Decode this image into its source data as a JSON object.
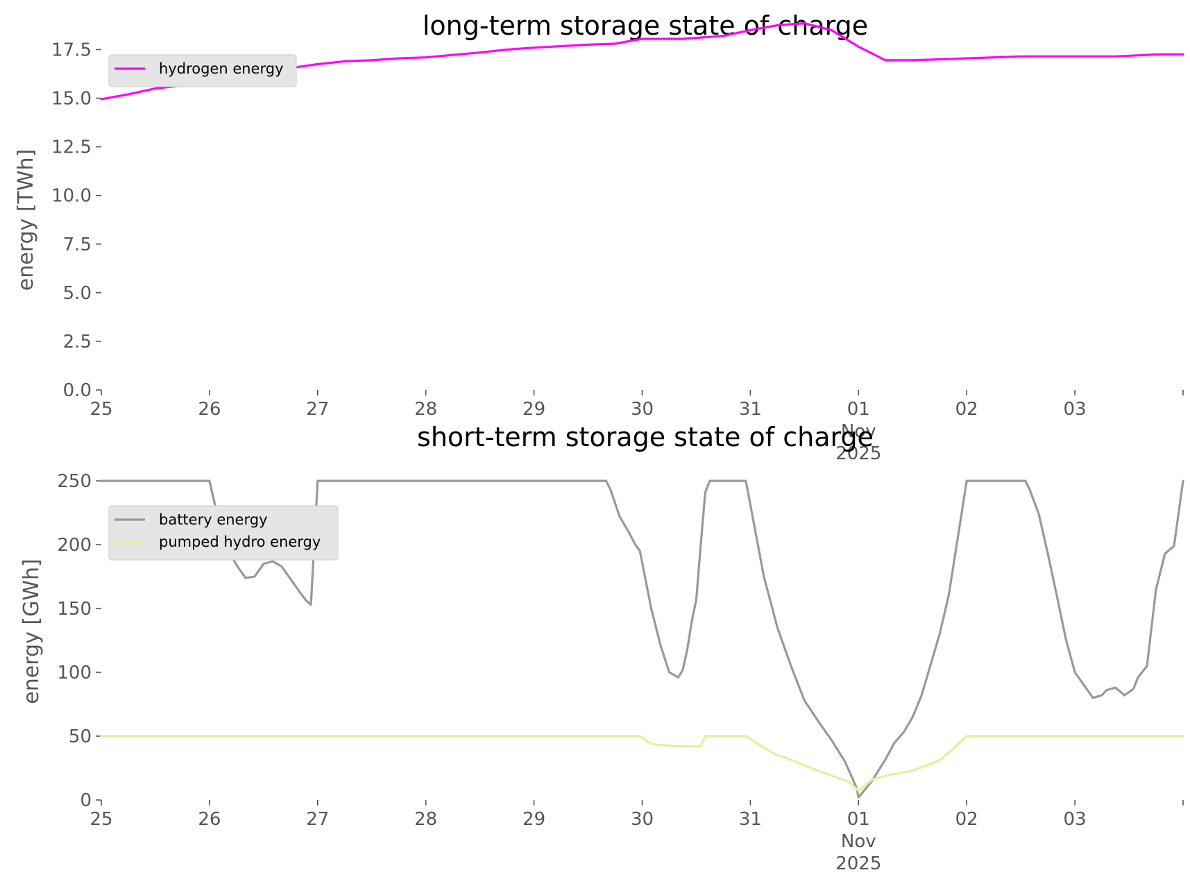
{
  "chart_data": [
    {
      "type": "line",
      "title": "long-term storage state of charge",
      "ylabel": "energy [TWh]",
      "ylim": [
        0,
        19.3
      ],
      "xlim": [
        "2025-10-25",
        "2025-11-04"
      ],
      "yticks": [
        "0.0",
        "2.5",
        "5.0",
        "7.5",
        "10.0",
        "12.5",
        "15.0",
        "17.5"
      ],
      "xticks": [
        {
          "date": "2025-10-25",
          "label": [
            "25"
          ]
        },
        {
          "date": "2025-10-26",
          "label": [
            "26"
          ]
        },
        {
          "date": "2025-10-27",
          "label": [
            "27"
          ]
        },
        {
          "date": "2025-10-28",
          "label": [
            "28"
          ]
        },
        {
          "date": "2025-10-29",
          "label": [
            "29"
          ]
        },
        {
          "date": "2025-10-30",
          "label": [
            "30"
          ]
        },
        {
          "date": "2025-10-31",
          "label": [
            "31"
          ]
        },
        {
          "date": "2025-11-01",
          "label": [
            "01",
            "Nov",
            "2025"
          ]
        },
        {
          "date": "2025-11-02",
          "label": [
            "02"
          ]
        },
        {
          "date": "2025-11-03",
          "label": [
            "03"
          ]
        },
        {
          "date": "2025-11-04",
          "label": [
            ""
          ]
        }
      ],
      "grid": false,
      "legend_position": "top-left",
      "series": [
        {
          "name": "hydrogen energy",
          "color": "#ff00ff",
          "x": [
            "2025-10-25T00:00",
            "2025-10-25T06:00",
            "2025-10-25T12:00",
            "2025-10-25T18:00",
            "2025-10-26T00:00",
            "2025-10-26T03:00",
            "2025-10-26T12:00",
            "2025-10-26T18:00",
            "2025-10-27T00:00",
            "2025-10-27T06:00",
            "2025-10-27T12:00",
            "2025-10-27T18:00",
            "2025-10-28T00:00",
            "2025-10-28T12:00",
            "2025-10-28T18:00",
            "2025-10-29T00:00",
            "2025-10-29T12:00",
            "2025-10-29T18:00",
            "2025-10-30T00:00",
            "2025-10-30T09:00",
            "2025-10-30T18:00",
            "2025-10-31T00:00",
            "2025-10-31T06:00",
            "2025-10-31T12:00",
            "2025-10-31T18:00",
            "2025-11-01T00:00",
            "2025-11-01T06:00",
            "2025-11-01T12:00",
            "2025-11-02T00:00",
            "2025-11-02T12:00",
            "2025-11-03T00:00",
            "2025-11-03T09:00",
            "2025-11-03T18:00",
            "2025-11-04T00:00"
          ],
          "values": [
            14.95,
            15.2,
            15.5,
            15.65,
            15.85,
            15.95,
            16.35,
            16.55,
            16.75,
            16.9,
            16.95,
            17.05,
            17.1,
            17.35,
            17.5,
            17.6,
            17.75,
            17.8,
            18.05,
            18.05,
            18.2,
            18.5,
            18.75,
            18.85,
            18.5,
            17.65,
            16.95,
            16.95,
            17.05,
            17.15,
            17.15,
            17.15,
            17.25,
            17.25
          ]
        }
      ]
    },
    {
      "type": "line",
      "title": "short-term storage state of charge",
      "ylabel": "energy [GWh]",
      "ylim": [
        0,
        262
      ],
      "xlim": [
        "2025-10-25",
        "2025-11-04"
      ],
      "yticks": [
        "0",
        "50",
        "100",
        "150",
        "200",
        "250"
      ],
      "xticks": [
        {
          "date": "2025-10-25",
          "label": [
            "25"
          ]
        },
        {
          "date": "2025-10-26",
          "label": [
            "26"
          ]
        },
        {
          "date": "2025-10-27",
          "label": [
            "27"
          ]
        },
        {
          "date": "2025-10-28",
          "label": [
            "28"
          ]
        },
        {
          "date": "2025-10-29",
          "label": [
            "29"
          ]
        },
        {
          "date": "2025-10-30",
          "label": [
            "30"
          ]
        },
        {
          "date": "2025-10-31",
          "label": [
            "31"
          ]
        },
        {
          "date": "2025-11-01",
          "label": [
            "01",
            "Nov",
            "2025"
          ]
        },
        {
          "date": "2025-11-02",
          "label": [
            "02"
          ]
        },
        {
          "date": "2025-11-03",
          "label": [
            "03"
          ]
        },
        {
          "date": "2025-11-04",
          "label": [
            ""
          ]
        }
      ],
      "grid": false,
      "legend_position": "top-left",
      "series": [
        {
          "name": "battery energy",
          "color": "#999999",
          "x": [
            "2025-10-25T00:00",
            "2025-10-26T00:00",
            "2025-10-26T03:00",
            "2025-10-26T06:00",
            "2025-10-26T08:00",
            "2025-10-26T10:00",
            "2025-10-26T12:00",
            "2025-10-26T14:00",
            "2025-10-26T16:00",
            "2025-10-26T18:00",
            "2025-10-26T20:00",
            "2025-10-26T21:30",
            "2025-10-26T22:30",
            "2025-10-27T00:00",
            "2025-10-29T16:00",
            "2025-10-29T17:00",
            "2025-10-29T19:00",
            "2025-10-29T21:00",
            "2025-10-29T22:30",
            "2025-10-29T23:30",
            "2025-10-30T02:00",
            "2025-10-30T04:00",
            "2025-10-30T06:00",
            "2025-10-30T08:00",
            "2025-10-30T09:00",
            "2025-10-30T10:00",
            "2025-10-30T11:00",
            "2025-10-30T12:00",
            "2025-10-30T13:00",
            "2025-10-30T14:00",
            "2025-10-30T15:00",
            "2025-10-30T16:00",
            "2025-10-30T23:00",
            "2025-10-31T03:00",
            "2025-10-31T06:00",
            "2025-10-31T09:00",
            "2025-10-31T12:00",
            "2025-10-31T15:00",
            "2025-10-31T18:00",
            "2025-10-31T21:00",
            "2025-10-31T23:30",
            "2025-11-01T00:00",
            "2025-11-01T03:00",
            "2025-11-01T06:00",
            "2025-11-01T08:00",
            "2025-11-01T10:00",
            "2025-11-01T12:00",
            "2025-11-01T14:00",
            "2025-11-01T18:00",
            "2025-11-01T20:00",
            "2025-11-02T00:00",
            "2025-11-02T13:00",
            "2025-11-02T14:00",
            "2025-11-02T16:00",
            "2025-11-02T18:00",
            "2025-11-02T20:00",
            "2025-11-02T22:00",
            "2025-11-03T00:00",
            "2025-11-03T04:00",
            "2025-11-03T06:00",
            "2025-11-03T07:00",
            "2025-11-03T09:00",
            "2025-11-03T11:00",
            "2025-11-03T13:00",
            "2025-11-03T14:00",
            "2025-11-03T16:00",
            "2025-11-03T18:00",
            "2025-11-03T20:00",
            "2025-11-03T22:00",
            "2025-11-04T00:00"
          ],
          "values": [
            250,
            250,
            204,
            184,
            174,
            175,
            185,
            187,
            183,
            173,
            163,
            156,
            153,
            250,
            250,
            243,
            222,
            210,
            200,
            195,
            150,
            122,
            100,
            96,
            102,
            118,
            140,
            157,
            200,
            241,
            250,
            250,
            250,
            175,
            135,
            105,
            78,
            62,
            47,
            30,
            10,
            2,
            15,
            32,
            45,
            53,
            65,
            82,
            130,
            160,
            250,
            250,
            243,
            224,
            193,
            160,
            126,
            100,
            80,
            82,
            86,
            88,
            82,
            87,
            96,
            105,
            165,
            193,
            199,
            250
          ],
          "value_note": ""
        },
        {
          "name": "pumped hydro energy",
          "color": "#d9f59c",
          "x": [
            "2025-10-25T00:00",
            "2025-10-29T23:30",
            "2025-10-30T02:00",
            "2025-10-30T04:00",
            "2025-10-30T08:00",
            "2025-10-30T12:00",
            "2025-10-30T13:00",
            "2025-10-30T14:00",
            "2025-10-30T23:00",
            "2025-10-31T03:00",
            "2025-10-31T06:00",
            "2025-10-31T08:00",
            "2025-10-31T12:00",
            "2025-10-31T18:00",
            "2025-10-31T22:00",
            "2025-11-01T00:00",
            "2025-11-01T03:00",
            "2025-11-01T06:00",
            "2025-11-01T12:00",
            "2025-11-01T18:00",
            "2025-11-01T20:00",
            "2025-11-02T00:00",
            "2025-11-04T00:00"
          ],
          "values": [
            50,
            50,
            44,
            43,
            42,
            42,
            42,
            50,
            50,
            41,
            35,
            33,
            27,
            19,
            14,
            7,
            16,
            19,
            23,
            31,
            37,
            50,
            50
          ]
        }
      ]
    }
  ]
}
